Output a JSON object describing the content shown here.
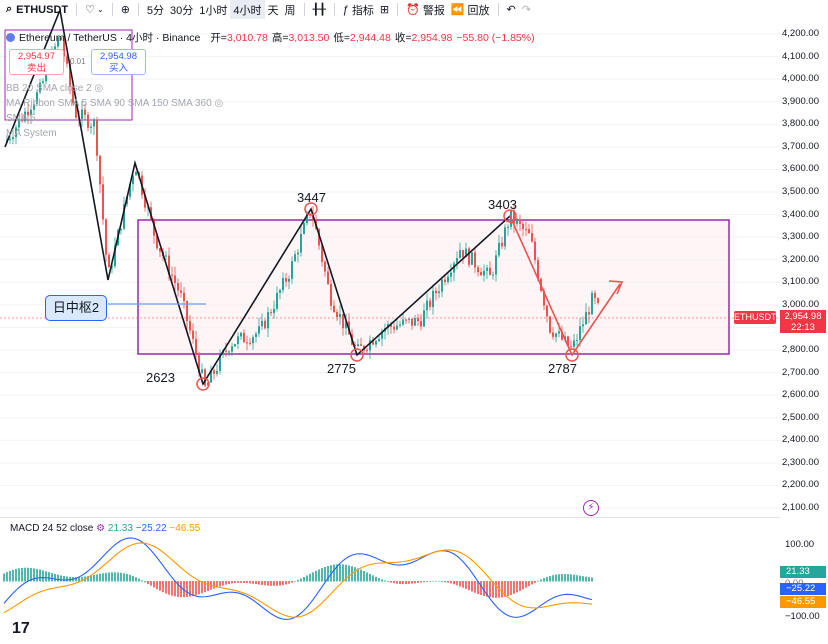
{
  "toolbar": {
    "symbol": "ETHUSDT",
    "intervals": [
      "5分",
      "30分",
      "1小时",
      "4小时",
      "天",
      "周"
    ],
    "active_interval": "4小时",
    "indicators_label": "指标",
    "alert_label": "警报",
    "replay_label": "回放"
  },
  "legend": {
    "title": "Ethereum / TetherUS · 4小时 · Binance",
    "open_label": "开=",
    "open": "3,010.78",
    "high_label": "高=",
    "high": "3,013.50",
    "low_label": "低=",
    "low": "2,944.48",
    "close_label": "收=",
    "close": "2,954.98",
    "change": "−55.80 (−1.85%)",
    "sell_price": "2,954.97",
    "sell_label": "卖出",
    "buy_price": "2,954.98",
    "buy_label": "买入",
    "spread": "0.01",
    "indicators": [
      "BB 20 SMA close 2",
      "MA Ribbon SMA 5 SMA 90 SMA 150 SMA 360",
      "SMA 5",
      "MA System"
    ]
  },
  "price_axis": [
    "4,200.00",
    "4,100.00",
    "4,000.00",
    "3,900.00",
    "3,800.00",
    "3,700.00",
    "3,600.00",
    "3,500.00",
    "3,400.00",
    "3,300.00",
    "3,200.00",
    "3,100.00",
    "3,000.00",
    "2,900.00",
    "2,800.00",
    "2,700.00",
    "2,600.00",
    "2,500.00",
    "2,400.00",
    "2,300.00",
    "2,200.00",
    "2,100.00"
  ],
  "last_price": {
    "symbol": "ETHUSDT",
    "price": "2,954.98",
    "countdown": "22:13"
  },
  "annotations": {
    "pivot_label": "日中枢2",
    "swings": [
      {
        "label": "2623",
        "price": 2623
      },
      {
        "label": "3447",
        "price": 3447
      },
      {
        "label": "2775",
        "price": 2775
      },
      {
        "label": "3403",
        "price": 3403
      },
      {
        "label": "2787",
        "price": 2787
      }
    ],
    "box_top": 3380,
    "box_bottom": 2785
  },
  "macd": {
    "title": "MACD 24 52 close",
    "hist": "21.33",
    "macd": "−25.22",
    "signal": "−46.55",
    "axis": [
      "100.00",
      "0.00",
      "−100.00"
    ],
    "colors": {
      "hist_up": "#26a69a",
      "hist_down": "#ef5350",
      "macd": "#2962ff",
      "signal": "#ff9800"
    }
  },
  "colors": {
    "up": "#26a69a",
    "down": "#ef5350",
    "box": "#9c27b0",
    "accent_red": "#f23645"
  }
}
